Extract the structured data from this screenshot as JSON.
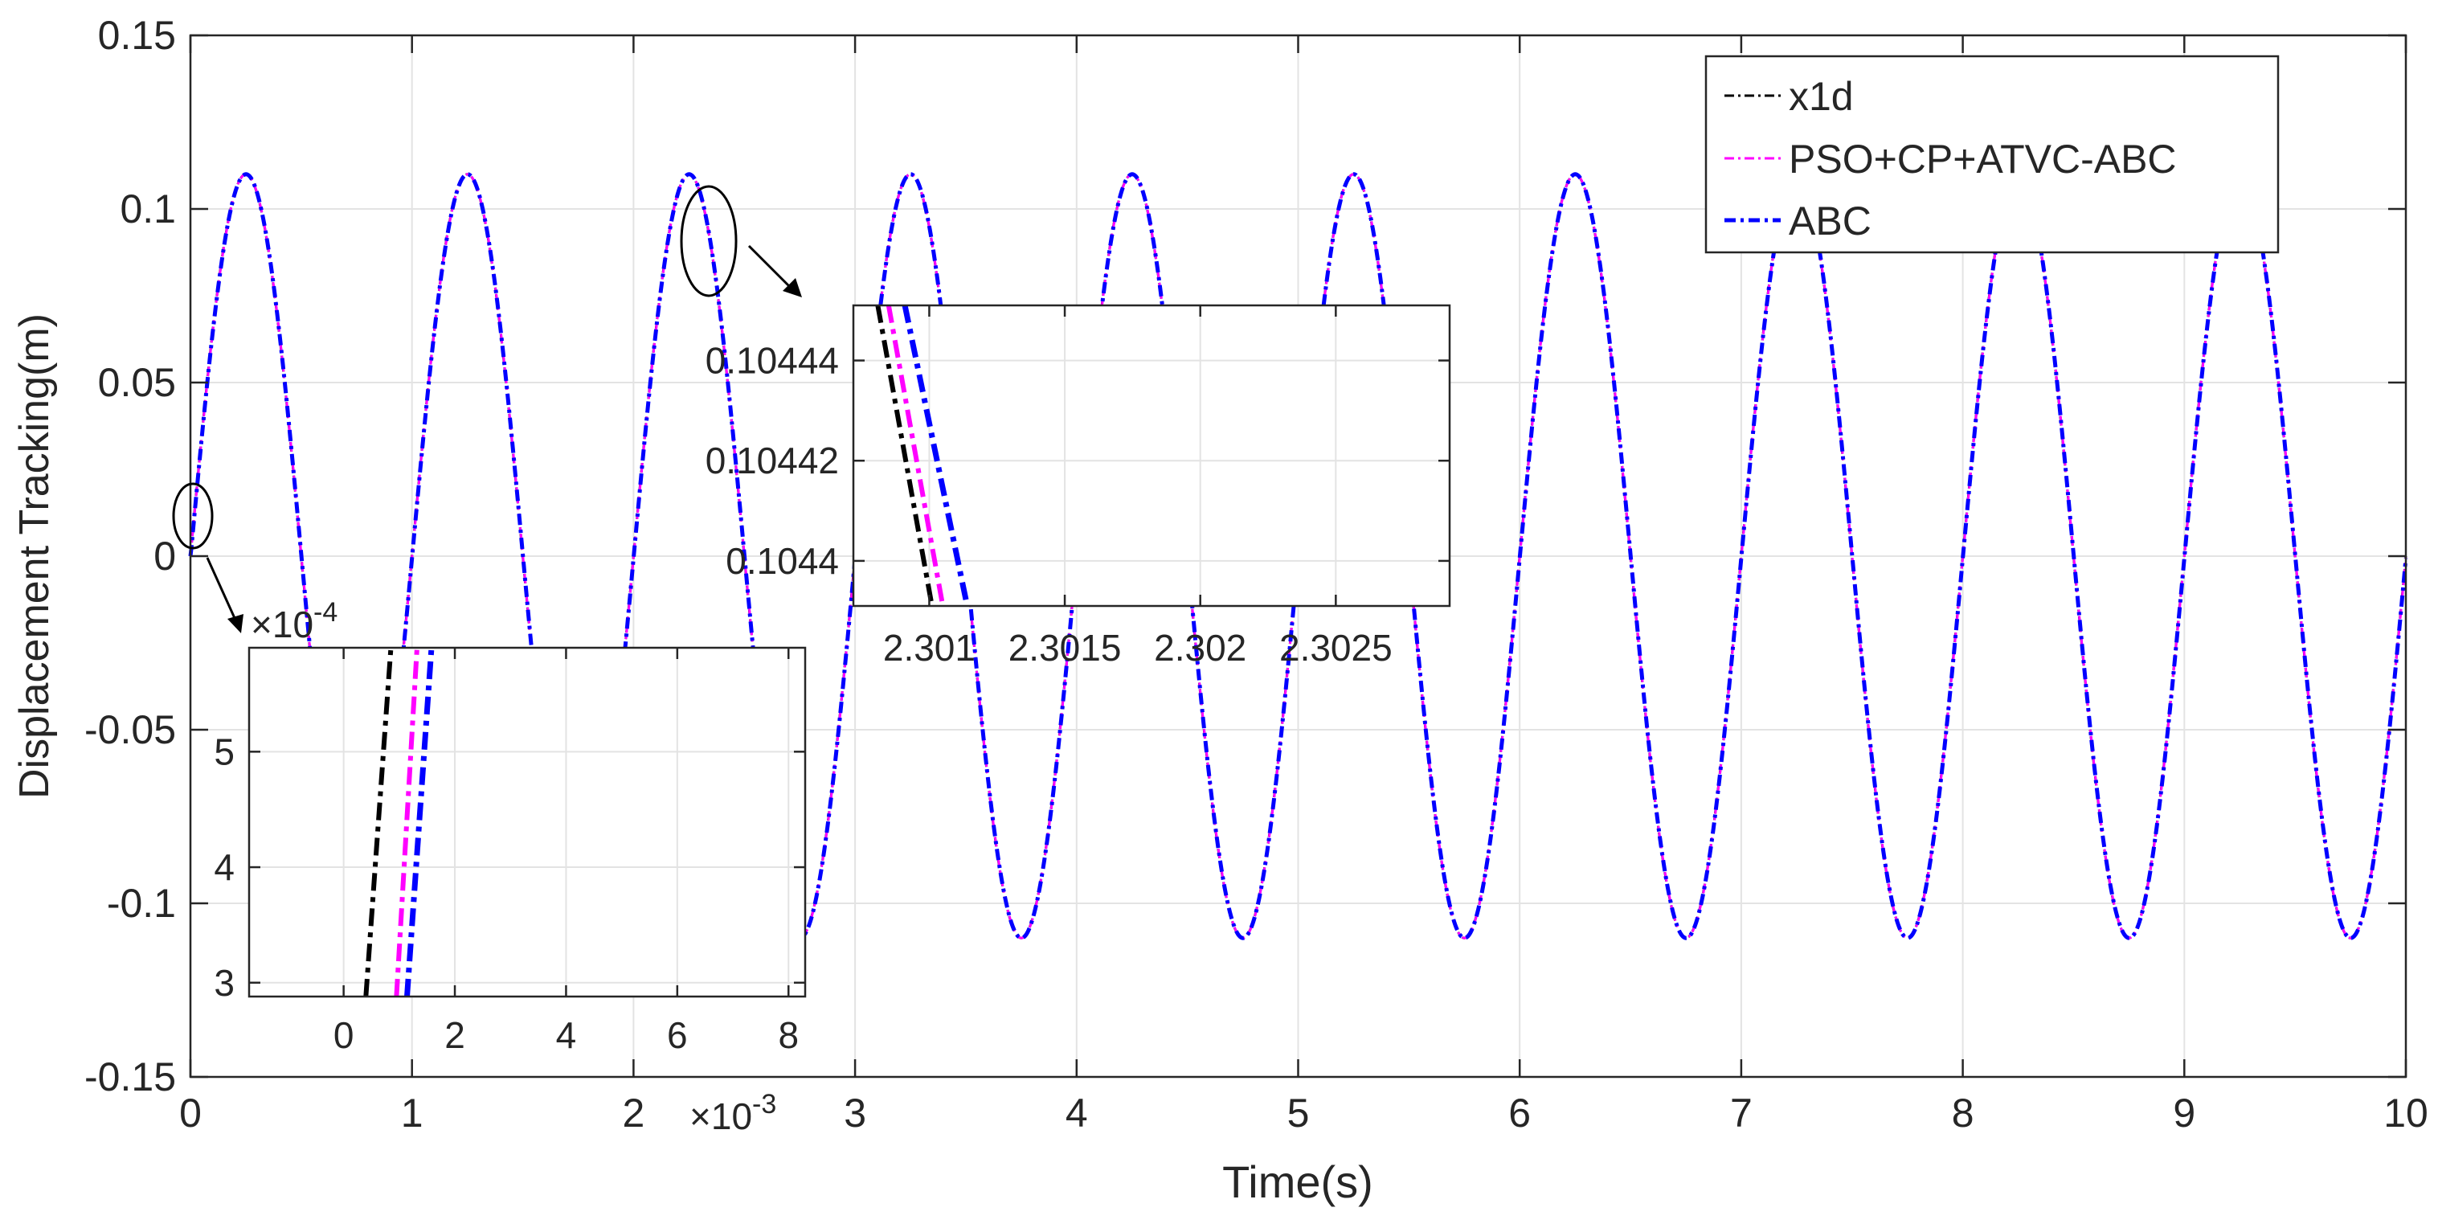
{
  "chart_data": [
    {
      "type": "line",
      "xlabel": "Time(s)",
      "ylabel": "Displacement Tracking(m)",
      "xlim": [
        0,
        10
      ],
      "ylim": [
        -0.15,
        0.15
      ],
      "xticks": [
        0,
        1,
        2,
        3,
        4,
        5,
        6,
        7,
        8,
        9,
        10
      ],
      "xtick_labels": [
        "0",
        "1",
        "2",
        "3",
        "4",
        "5",
        "6",
        "7",
        "8",
        "9",
        "10"
      ],
      "yticks": [
        0.15,
        0.1,
        0.05,
        0,
        -0.05,
        -0.1,
        -0.15
      ],
      "ytick_labels": [
        "0.15",
        "0.1",
        "0.05",
        "0",
        "-0.05",
        "-0.1",
        "-0.15"
      ],
      "grid": true,
      "legend_position": "top-right",
      "signal": {
        "amplitude": 0.11,
        "frequency_hz": 1,
        "x_start": 0,
        "x_end": 10
      },
      "series": [
        {
          "name": "x1d",
          "color": "#000000",
          "style": "dash-dot",
          "lag_s": 0
        },
        {
          "name": "PSO+CP+ATVC-ABC",
          "color": "#ff00ff",
          "style": "dash-dot",
          "lag_s": 0.0006
        },
        {
          "name": "ABC",
          "color": "#0000ff",
          "style": "dash-dot",
          "lag_s": 0.0009
        }
      ]
    },
    {
      "type": "line",
      "inset": "zoom near t = 0",
      "xlim": [
        -0.0017,
        0.0083
      ],
      "ylim": [
        0.000288,
        0.00059
      ],
      "xticks": [
        0,
        0.002,
        0.004,
        0.006,
        0.008
      ],
      "xtick_labels": [
        "0",
        "2",
        "4",
        "6",
        "8"
      ],
      "x_exponent_label": "×10",
      "x_exponent_power": "-3",
      "yticks": [
        0.0003,
        0.0004,
        0.0005
      ],
      "ytick_labels": [
        "3",
        "4",
        "5"
      ],
      "y_exponent_label": "×10",
      "y_exponent_power": "-4",
      "series": [
        {
          "name": "x1d",
          "x": [
            0.0004,
            0.00085
          ],
          "y": [
            0.000288,
            0.00059
          ]
        },
        {
          "name": "PSO+CP+ATVC-ABC",
          "x": [
            0.00095,
            0.00132
          ],
          "y": [
            0.000288,
            0.00059
          ]
        },
        {
          "name": "ABC",
          "x": [
            0.00114,
            0.00158
          ],
          "y": [
            0.000288,
            0.00059
          ]
        }
      ]
    },
    {
      "type": "line",
      "inset": "zoom near t = 2.301",
      "xlim": [
        2.30072,
        2.30292
      ],
      "ylim": [
        0.104391,
        0.104451
      ],
      "xticks": [
        2.301,
        2.3015,
        2.302,
        2.3025
      ],
      "xtick_labels": [
        "2.301",
        "2.3015",
        "2.302",
        "2.3025"
      ],
      "yticks": [
        0.10444,
        0.10442,
        0.1044
      ],
      "ytick_labels": [
        "0.10444",
        "0.10442",
        "0.1044"
      ],
      "series": [
        {
          "name": "x1d",
          "x": [
            2.30081,
            2.30101
          ],
          "y": [
            0.104451,
            0.104391
          ]
        },
        {
          "name": "PSO+CP+ATVC-ABC",
          "x": [
            2.30085,
            2.30105
          ],
          "y": [
            0.104451,
            0.104391
          ]
        },
        {
          "name": "ABC",
          "x": [
            2.30091,
            2.30114
          ],
          "y": [
            0.104451,
            0.104391
          ]
        }
      ]
    }
  ]
}
